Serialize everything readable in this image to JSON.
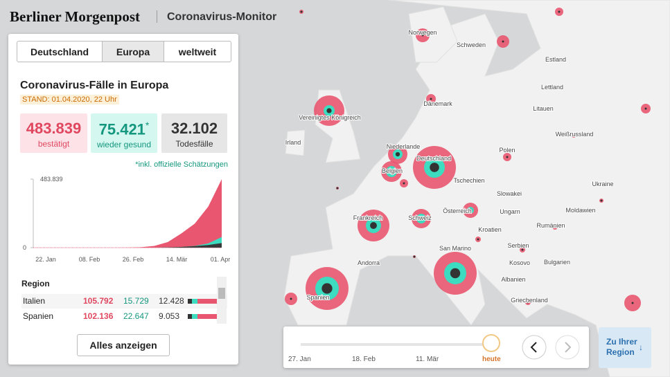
{
  "header": {
    "brand": "Berliner Morgenpost",
    "section": "Coronavirus-Monitor"
  },
  "tabs": [
    "Deutschland",
    "Europa",
    "weltweit"
  ],
  "panel": {
    "title": "Coronavirus-Fälle in Europa",
    "stand": "STAND: 01.04.2020, 22 Uhr",
    "stats": [
      {
        "value": "483.839",
        "label": "bestätigt"
      },
      {
        "value": "75.421",
        "star": "*",
        "label": "wieder gesund"
      },
      {
        "value": "32.102",
        "label": "Todesfälle"
      }
    ],
    "note_star": "*",
    "note": "inkl. offizielle Schätzungen",
    "chart": {
      "type": "area",
      "yticks": [
        {
          "value": 483839,
          "label": "483.839"
        },
        0
      ],
      "ylim": [
        0,
        483839
      ],
      "xticks": [
        "22. Jan",
        "08. Feb",
        "26. Feb",
        "14. Mär",
        "01. Apr"
      ],
      "series": [
        {
          "name": "bestätigt",
          "color": "#e8566f",
          "values": [
            0,
            0,
            0,
            10,
            20,
            50,
            100,
            500,
            3000,
            12000,
            40000,
            100000,
            170000,
            290000,
            483839
          ]
        },
        {
          "name": "wieder gesund",
          "color": "#3ddbc0",
          "values": [
            0,
            0,
            0,
            0,
            5,
            10,
            20,
            50,
            100,
            300,
            2000,
            5000,
            12000,
            30000,
            75421
          ]
        },
        {
          "name": "Todesfälle",
          "color": "#3a3a3a",
          "values": [
            0,
            0,
            0,
            0,
            0,
            0,
            1,
            10,
            60,
            300,
            1500,
            5000,
            11000,
            19000,
            32102
          ]
        }
      ]
    },
    "table": {
      "header": "Region",
      "rows": [
        [
          "Italien",
          "105.792",
          "15.729",
          "12.428"
        ],
        [
          "Spanien",
          "102.136",
          "22.647",
          "9.053"
        ]
      ]
    },
    "button": "Alles anzeigen"
  },
  "map": {
    "labels": [
      "Norwegen",
      "Schweden",
      "Estland",
      "Lettland",
      "Litauen",
      "Dänemark",
      "Vereinigtes Königreich",
      "Irland",
      "Niederlande",
      "Belgien",
      "Deutschland",
      "Polen",
      "Weißrussland",
      "Tschechien",
      "Slowakei",
      "Ukraine",
      "Österreich",
      "Ungarn",
      "Moldawien",
      "Frankreich",
      "Schweiz",
      "Kroatien",
      "Rumänien",
      "San Marino",
      "Serbien",
      "Kosovo",
      "Bulgarien",
      "Andorra",
      "Albanien",
      "Spanien",
      "Griechenland"
    ]
  },
  "timeline": {
    "labels": [
      "27. Jan",
      "18. Feb",
      "11. Mär",
      "heute"
    ]
  },
  "region_button": {
    "line1": "Zu Ihrer",
    "line2": "Region",
    "arrow": "↓"
  }
}
